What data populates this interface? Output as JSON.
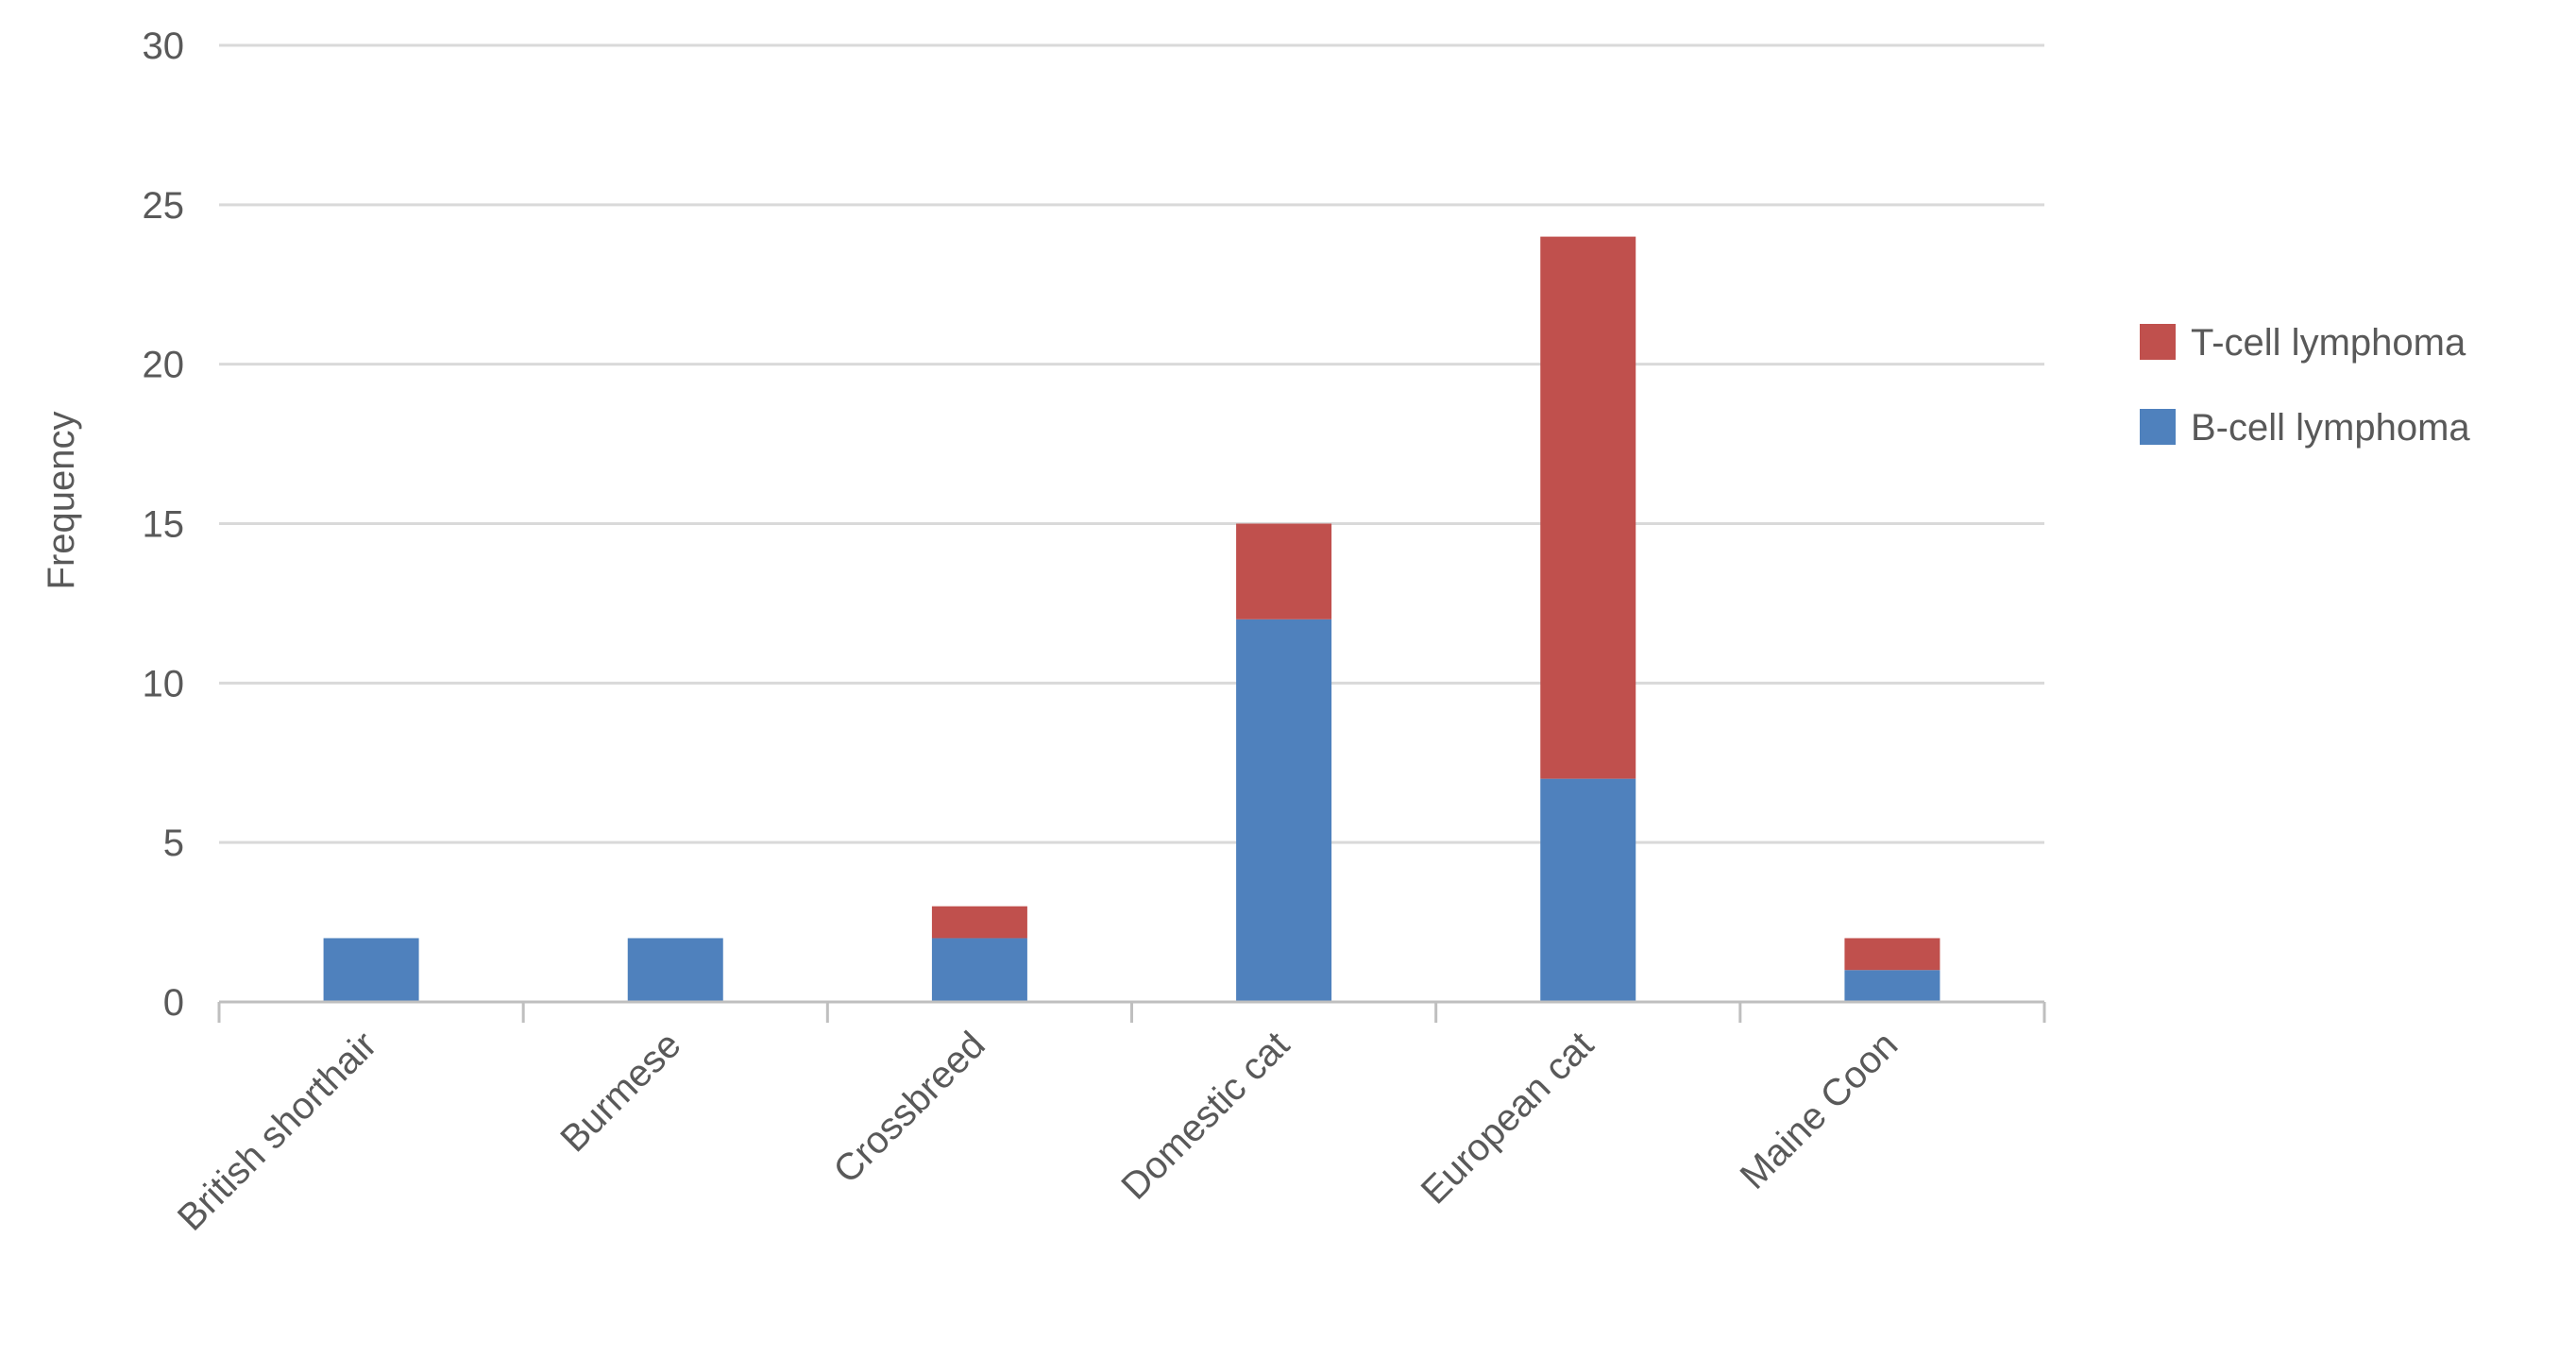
{
  "chart_data": {
    "type": "bar",
    "stacked": true,
    "title": "",
    "xlabel": "",
    "ylabel": "Frequency",
    "ylim": [
      0,
      30
    ],
    "yticks": [
      0,
      5,
      10,
      15,
      20,
      25,
      30
    ],
    "grid": true,
    "legend_position": "right",
    "categories": [
      "British shorthair",
      "Burmese",
      "Crossbreed",
      "Domestic cat",
      "European cat",
      "Maine Coon"
    ],
    "series": [
      {
        "name": "B-cell lymphoma",
        "color": "#4f81bd",
        "values": [
          2,
          2,
          2,
          12,
          7,
          1
        ]
      },
      {
        "name": "T-cell lymphoma",
        "color": "#c0504d",
        "values": [
          0,
          0,
          1,
          3,
          17,
          1
        ]
      }
    ],
    "legend_order": [
      "T-cell lymphoma",
      "B-cell lymphoma"
    ]
  }
}
